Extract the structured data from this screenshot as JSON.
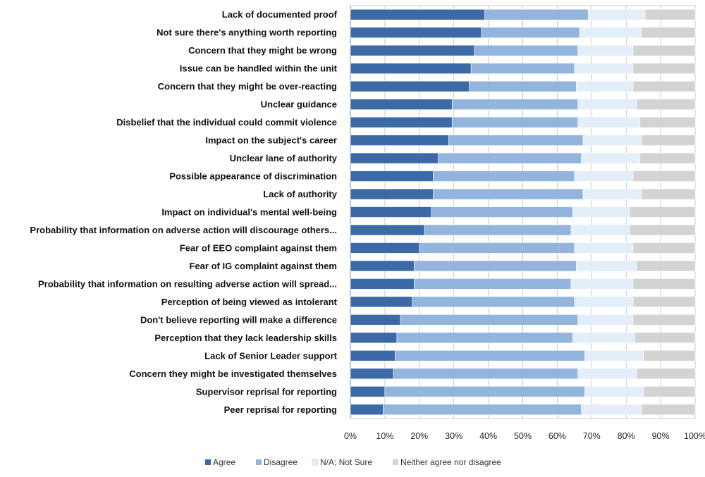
{
  "chart_data": {
    "type": "bar",
    "orientation": "horizontal",
    "stacked": true,
    "title": "",
    "xlabel": "",
    "ylabel": "",
    "xlim": [
      0,
      100
    ],
    "grid": true,
    "legend_position": "bottom",
    "categories": [
      "Lack of documented proof",
      "Not sure there's anything worth reporting",
      "Concern that they might be wrong",
      "Issue can be handled within the unit",
      "Concern that they might be over-reacting",
      "Unclear guidance",
      "Disbelief that the individual could commit violence",
      "Impact on the subject's career",
      "Unclear lane of authority",
      "Possible appearance of discrimination",
      "Lack of authority",
      "Impact on individual's mental well-being",
      "Probability that information on adverse action will discourage others...",
      "Fear of EEO complaint against them",
      "Fear of IG complaint against them",
      "Probability that information on resulting adverse action will spread...",
      "Perception of being viewed as intolerant",
      "Don't believe reporting will make a difference",
      "Perception that they lack leadership skills",
      "Lack of Senior Leader support",
      "Concern they might be investigated themselves",
      "Supervisor reprisal for reporting",
      "Peer reprisal for reporting"
    ],
    "x_ticks": [
      "0%",
      "10%",
      "20%",
      "30%",
      "40%",
      "50%",
      "60%",
      "70%",
      "80%",
      "90%",
      "100%"
    ],
    "series": [
      {
        "name": "Agree",
        "color": "#3c6aa6",
        "values": [
          39,
          38,
          36,
          35,
          34.5,
          29.5,
          29.5,
          28.5,
          25.5,
          24,
          24,
          23.5,
          21.5,
          20,
          18.5,
          18.5,
          18,
          14.5,
          13.5,
          13,
          12.5,
          10,
          9.5
        ]
      },
      {
        "name": "Disagree",
        "color": "#93b4dc",
        "values": [
          30,
          28.5,
          30,
          30,
          31,
          36.5,
          36.5,
          39,
          41.5,
          41,
          43.5,
          41,
          42.5,
          45,
          47,
          45.5,
          47,
          51.5,
          51,
          55,
          53.5,
          58,
          57.5
        ]
      },
      {
        "name": "N/A; Not Sure",
        "color": "#e3eef9",
        "values": [
          16.5,
          18,
          16,
          17,
          16.5,
          17,
          18,
          17,
          17,
          17,
          17,
          16.5,
          17,
          17,
          17.5,
          18,
          17,
          16,
          18,
          17,
          17,
          17,
          17.5
        ]
      },
      {
        "name": "Neither agree nor disagree",
        "color": "#d3d3d3",
        "values": [
          14.5,
          15.5,
          18,
          18,
          18,
          17,
          16,
          15.5,
          16,
          18,
          15.5,
          19,
          19,
          18,
          17,
          18,
          18,
          18,
          17.5,
          15,
          17,
          15,
          15.5
        ]
      }
    ]
  }
}
